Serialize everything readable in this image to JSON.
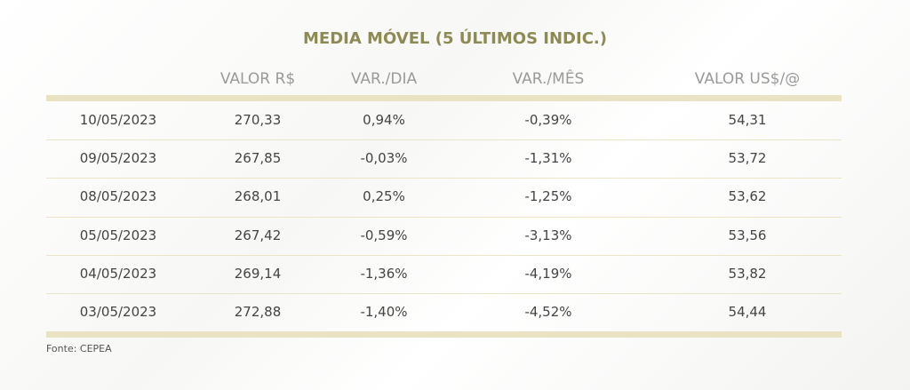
{
  "title": "MEDIA MÓVEL (5 ÚLTIMOS INDIC.)",
  "table": {
    "headers": [
      "VALOR R$",
      "VAR./DIA",
      "VAR./MÊS",
      "VALOR US$/@"
    ],
    "rows": [
      [
        "10/05/2023",
        "270,33",
        "0,94%",
        "-0,39%",
        "54,31"
      ],
      [
        "09/05/2023",
        "267,85",
        "-0,03%",
        "-1,31%",
        "53,72"
      ],
      [
        "08/05/2023",
        "268,01",
        "0,25%",
        "-1,25%",
        "53,62"
      ],
      [
        "05/05/2023",
        "267,42",
        "-0,59%",
        "-3,13%",
        "53,56"
      ],
      [
        "04/05/2023",
        "269,14",
        "-1,36%",
        "-4,19%",
        "53,82"
      ],
      [
        "03/05/2023",
        "272,88",
        "-1,40%",
        "-4,52%",
        "54,44"
      ]
    ]
  },
  "source": "Fonte: CEPEA"
}
